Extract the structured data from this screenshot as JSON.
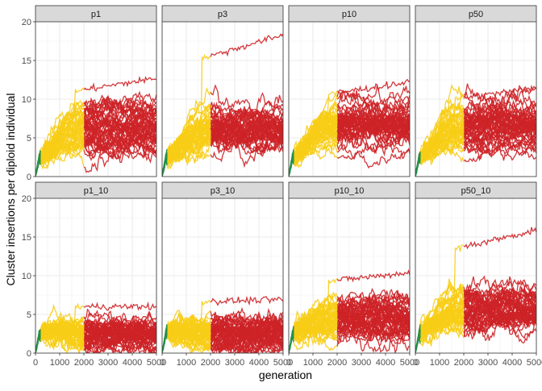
{
  "chart_data": {
    "type": "line",
    "xlabel": "generation",
    "ylabel": "Cluster insertions per diploid individual",
    "xlim": [
      0,
      5000
    ],
    "ylim": [
      0,
      20
    ],
    "x_ticks": [
      0,
      1000,
      2000,
      3000,
      4000,
      5000
    ],
    "y_ticks": [
      0,
      5,
      10,
      15,
      20
    ],
    "grid": true,
    "layout": "facet grid, 2 rows x 4 columns",
    "phase_colors": {
      "early": "#239148",
      "middle": "#f7cd16",
      "late": "#cd2227"
    },
    "panels": [
      {
        "name": "p1",
        "phase_ends": [
          200,
          2000
        ],
        "plateau_mean": 6.5,
        "plateau_spread": 2.6,
        "max": 12.7,
        "min_late": 1.8,
        "n_runs": 50
      },
      {
        "name": "p3",
        "phase_ends": [
          200,
          2000
        ],
        "plateau_mean": 6.3,
        "plateau_spread": 2.6,
        "max": 18.3,
        "min_late": 2.0,
        "n_runs": 50
      },
      {
        "name": "p10",
        "phase_ends": [
          200,
          2000
        ],
        "plateau_mean": 6.6,
        "plateau_spread": 2.5,
        "max": 12.2,
        "min_late": 2.0,
        "n_runs": 50
      },
      {
        "name": "p50",
        "phase_ends": [
          200,
          2000
        ],
        "plateau_mean": 6.7,
        "plateau_spread": 2.5,
        "max": 11.4,
        "min_late": 1.8,
        "n_runs": 50
      },
      {
        "name": "p1_10",
        "phase_ends": [
          200,
          2000
        ],
        "plateau_mean": 2.4,
        "plateau_spread": 1.5,
        "max": 6.0,
        "min_late": 0.0,
        "n_runs": 50
      },
      {
        "name": "p3_10",
        "phase_ends": [
          200,
          2000
        ],
        "plateau_mean": 2.6,
        "plateau_spread": 1.6,
        "max": 6.9,
        "min_late": 0.0,
        "n_runs": 50
      },
      {
        "name": "p10_10",
        "phase_ends": [
          200,
          2000
        ],
        "plateau_mean": 4.3,
        "plateau_spread": 2.4,
        "max": 10.4,
        "min_late": 0.0,
        "n_runs": 50
      },
      {
        "name": "p50_10",
        "phase_ends": [
          200,
          2000
        ],
        "plateau_mean": 6.0,
        "plateau_spread": 2.4,
        "max": 15.9,
        "min_late": 0.1,
        "n_runs": 50
      }
    ]
  }
}
